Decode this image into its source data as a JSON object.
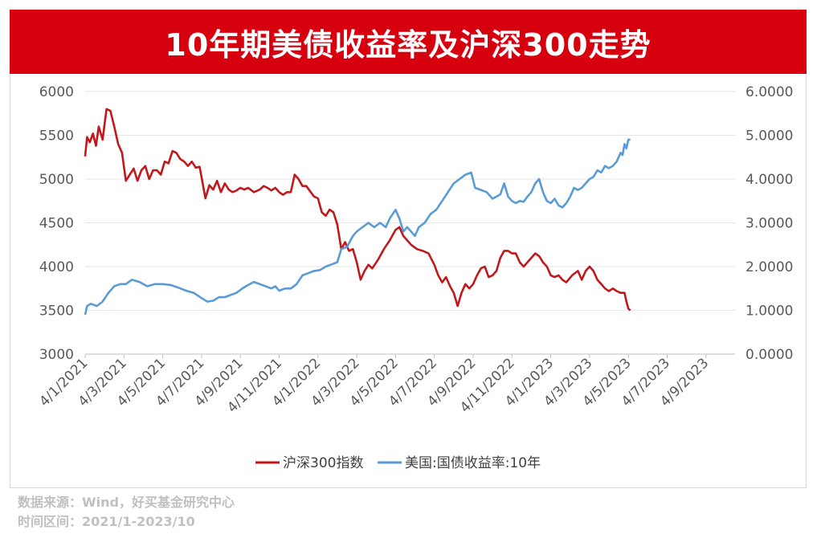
{
  "chart_data": {
    "type": "line",
    "title": "10年期美债收益率及沪深300走势",
    "x_labels": [
      "4/1/2021",
      "4/3/2021",
      "4/5/2021",
      "4/7/2021",
      "4/9/2021",
      "4/11/2021",
      "4/1/2022",
      "4/3/2022",
      "4/5/2022",
      "4/7/2022",
      "4/9/2022",
      "4/11/2022",
      "4/1/2023",
      "4/3/2023",
      "4/5/2023",
      "4/7/2023",
      "4/9/2023"
    ],
    "y_left": {
      "min": 3000,
      "max": 6000,
      "ticks": [
        "3000",
        "3500",
        "4000",
        "4500",
        "5000",
        "5500",
        "6000"
      ]
    },
    "y_right": {
      "min": 0,
      "max": 6,
      "ticks": [
        "0.0000",
        "1.0000",
        "2.0000",
        "3.0000",
        "4.0000",
        "5.0000",
        "6.0000"
      ]
    },
    "grid": true,
    "legend_position": "bottom",
    "series": [
      {
        "name": "沪深300指数",
        "color": "#c0191c",
        "axis": "left",
        "points": [
          [
            0.0,
            5260
          ],
          [
            0.05,
            5480
          ],
          [
            0.12,
            5420
          ],
          [
            0.2,
            5520
          ],
          [
            0.28,
            5380
          ],
          [
            0.35,
            5600
          ],
          [
            0.45,
            5450
          ],
          [
            0.55,
            5800
          ],
          [
            0.65,
            5780
          ],
          [
            0.75,
            5600
          ],
          [
            0.85,
            5400
          ],
          [
            0.95,
            5300
          ],
          [
            1.05,
            4980
          ],
          [
            1.15,
            5050
          ],
          [
            1.25,
            5120
          ],
          [
            1.35,
            4980
          ],
          [
            1.45,
            5100
          ],
          [
            1.55,
            5150
          ],
          [
            1.65,
            5000
          ],
          [
            1.75,
            5100
          ],
          [
            1.85,
            5100
          ],
          [
            1.95,
            5050
          ],
          [
            2.05,
            5200
          ],
          [
            2.15,
            5180
          ],
          [
            2.25,
            5320
          ],
          [
            2.35,
            5300
          ],
          [
            2.45,
            5230
          ],
          [
            2.55,
            5200
          ],
          [
            2.65,
            5150
          ],
          [
            2.75,
            5200
          ],
          [
            2.85,
            5130
          ],
          [
            2.95,
            5140
          ],
          [
            3.05,
            4900
          ],
          [
            3.1,
            4780
          ],
          [
            3.2,
            4930
          ],
          [
            3.3,
            4880
          ],
          [
            3.4,
            4980
          ],
          [
            3.5,
            4850
          ],
          [
            3.6,
            4950
          ],
          [
            3.7,
            4880
          ],
          [
            3.8,
            4850
          ],
          [
            3.9,
            4870
          ],
          [
            4.0,
            4900
          ],
          [
            4.1,
            4880
          ],
          [
            4.2,
            4900
          ],
          [
            4.35,
            4850
          ],
          [
            4.5,
            4880
          ],
          [
            4.6,
            4920
          ],
          [
            4.7,
            4900
          ],
          [
            4.8,
            4870
          ],
          [
            4.9,
            4900
          ],
          [
            5.0,
            4850
          ],
          [
            5.1,
            4820
          ],
          [
            5.2,
            4850
          ],
          [
            5.3,
            4850
          ],
          [
            5.4,
            5050
          ],
          [
            5.5,
            5000
          ],
          [
            5.6,
            4920
          ],
          [
            5.7,
            4920
          ],
          [
            5.8,
            4860
          ],
          [
            5.9,
            4800
          ],
          [
            6.0,
            4780
          ],
          [
            6.1,
            4620
          ],
          [
            6.2,
            4580
          ],
          [
            6.3,
            4650
          ],
          [
            6.4,
            4620
          ],
          [
            6.5,
            4480
          ],
          [
            6.6,
            4200
          ],
          [
            6.7,
            4280
          ],
          [
            6.8,
            4180
          ],
          [
            6.9,
            4200
          ],
          [
            7.0,
            4050
          ],
          [
            7.1,
            3850
          ],
          [
            7.2,
            3950
          ],
          [
            7.3,
            4020
          ],
          [
            7.4,
            3980
          ],
          [
            7.55,
            4080
          ],
          [
            7.7,
            4200
          ],
          [
            7.85,
            4300
          ],
          [
            8.0,
            4420
          ],
          [
            8.1,
            4450
          ],
          [
            8.2,
            4350
          ],
          [
            8.3,
            4300
          ],
          [
            8.4,
            4250
          ],
          [
            8.55,
            4200
          ],
          [
            8.7,
            4180
          ],
          [
            8.85,
            4150
          ],
          [
            9.0,
            4020
          ],
          [
            9.1,
            3900
          ],
          [
            9.2,
            3820
          ],
          [
            9.3,
            3880
          ],
          [
            9.4,
            3780
          ],
          [
            9.5,
            3700
          ],
          [
            9.6,
            3550
          ],
          [
            9.7,
            3700
          ],
          [
            9.8,
            3800
          ],
          [
            9.9,
            3750
          ],
          [
            10.0,
            3800
          ],
          [
            10.1,
            3900
          ],
          [
            10.2,
            3980
          ],
          [
            10.3,
            4000
          ],
          [
            10.4,
            3880
          ],
          [
            10.5,
            3900
          ],
          [
            10.6,
            3950
          ],
          [
            10.7,
            4100
          ],
          [
            10.8,
            4180
          ],
          [
            10.9,
            4180
          ],
          [
            11.0,
            4150
          ],
          [
            11.1,
            4150
          ],
          [
            11.2,
            4050
          ],
          [
            11.3,
            4000
          ],
          [
            11.4,
            4050
          ],
          [
            11.5,
            4100
          ],
          [
            11.6,
            4150
          ],
          [
            11.7,
            4120
          ],
          [
            11.8,
            4050
          ],
          [
            11.9,
            4000
          ],
          [
            12.0,
            3900
          ],
          [
            12.1,
            3880
          ],
          [
            12.2,
            3900
          ],
          [
            12.3,
            3850
          ],
          [
            12.4,
            3820
          ],
          [
            12.55,
            3900
          ],
          [
            12.7,
            3950
          ],
          [
            12.8,
            3850
          ],
          [
            12.9,
            3950
          ],
          [
            13.0,
            4000
          ],
          [
            13.1,
            3950
          ],
          [
            13.2,
            3850
          ],
          [
            13.3,
            3800
          ],
          [
            13.4,
            3750
          ],
          [
            13.5,
            3720
          ],
          [
            13.6,
            3750
          ],
          [
            13.7,
            3720
          ],
          [
            13.8,
            3700
          ],
          [
            13.9,
            3700
          ],
          [
            13.95,
            3600
          ],
          [
            14.0,
            3520
          ],
          [
            14.05,
            3500
          ]
        ]
      },
      {
        "name": "美国:国债收益率:10年",
        "color": "#5b9bd5",
        "axis": "right",
        "points": [
          [
            0.0,
            0.9
          ],
          [
            0.05,
            1.1
          ],
          [
            0.15,
            1.15
          ],
          [
            0.3,
            1.1
          ],
          [
            0.45,
            1.2
          ],
          [
            0.6,
            1.4
          ],
          [
            0.75,
            1.55
          ],
          [
            0.9,
            1.6
          ],
          [
            1.05,
            1.6
          ],
          [
            1.2,
            1.7
          ],
          [
            1.4,
            1.65
          ],
          [
            1.6,
            1.55
          ],
          [
            1.8,
            1.6
          ],
          [
            2.0,
            1.6
          ],
          [
            2.2,
            1.58
          ],
          [
            2.4,
            1.52
          ],
          [
            2.6,
            1.45
          ],
          [
            2.8,
            1.4
          ],
          [
            3.0,
            1.28
          ],
          [
            3.15,
            1.2
          ],
          [
            3.3,
            1.22
          ],
          [
            3.45,
            1.3
          ],
          [
            3.6,
            1.3
          ],
          [
            3.75,
            1.35
          ],
          [
            3.9,
            1.4
          ],
          [
            4.05,
            1.5
          ],
          [
            4.2,
            1.58
          ],
          [
            4.35,
            1.65
          ],
          [
            4.5,
            1.6
          ],
          [
            4.65,
            1.55
          ],
          [
            4.8,
            1.5
          ],
          [
            4.9,
            1.55
          ],
          [
            5.0,
            1.45
          ],
          [
            5.15,
            1.5
          ],
          [
            5.3,
            1.5
          ],
          [
            5.45,
            1.6
          ],
          [
            5.6,
            1.8
          ],
          [
            5.75,
            1.85
          ],
          [
            5.9,
            1.9
          ],
          [
            6.05,
            1.92
          ],
          [
            6.2,
            2.0
          ],
          [
            6.35,
            2.05
          ],
          [
            6.5,
            2.1
          ],
          [
            6.6,
            2.4
          ],
          [
            6.75,
            2.45
          ],
          [
            6.9,
            2.7
          ],
          [
            7.0,
            2.8
          ],
          [
            7.15,
            2.9
          ],
          [
            7.3,
            3.0
          ],
          [
            7.45,
            2.9
          ],
          [
            7.6,
            3.0
          ],
          [
            7.75,
            2.9
          ],
          [
            7.85,
            3.1
          ],
          [
            8.0,
            3.3
          ],
          [
            8.1,
            3.1
          ],
          [
            8.2,
            2.8
          ],
          [
            8.3,
            2.9
          ],
          [
            8.4,
            2.8
          ],
          [
            8.5,
            2.7
          ],
          [
            8.6,
            2.9
          ],
          [
            8.75,
            3.0
          ],
          [
            8.9,
            3.2
          ],
          [
            9.05,
            3.3
          ],
          [
            9.2,
            3.5
          ],
          [
            9.35,
            3.7
          ],
          [
            9.5,
            3.9
          ],
          [
            9.65,
            4.0
          ],
          [
            9.8,
            4.1
          ],
          [
            9.95,
            4.15
          ],
          [
            10.05,
            3.8
          ],
          [
            10.2,
            3.75
          ],
          [
            10.35,
            3.7
          ],
          [
            10.5,
            3.55
          ],
          [
            10.6,
            3.6
          ],
          [
            10.7,
            3.65
          ],
          [
            10.8,
            3.9
          ],
          [
            10.9,
            3.6
          ],
          [
            11.0,
            3.5
          ],
          [
            11.1,
            3.45
          ],
          [
            11.2,
            3.5
          ],
          [
            11.3,
            3.48
          ],
          [
            11.4,
            3.6
          ],
          [
            11.5,
            3.7
          ],
          [
            11.6,
            3.9
          ],
          [
            11.7,
            4.0
          ],
          [
            11.8,
            3.7
          ],
          [
            11.9,
            3.5
          ],
          [
            12.0,
            3.45
          ],
          [
            12.1,
            3.55
          ],
          [
            12.2,
            3.4
          ],
          [
            12.3,
            3.35
          ],
          [
            12.4,
            3.45
          ],
          [
            12.5,
            3.6
          ],
          [
            12.6,
            3.8
          ],
          [
            12.7,
            3.75
          ],
          [
            12.8,
            3.8
          ],
          [
            12.9,
            3.9
          ],
          [
            13.0,
            4.0
          ],
          [
            13.1,
            4.05
          ],
          [
            13.2,
            4.2
          ],
          [
            13.3,
            4.15
          ],
          [
            13.4,
            4.3
          ],
          [
            13.5,
            4.25
          ],
          [
            13.6,
            4.3
          ],
          [
            13.7,
            4.4
          ],
          [
            13.8,
            4.6
          ],
          [
            13.85,
            4.55
          ],
          [
            13.9,
            4.8
          ],
          [
            13.95,
            4.7
          ],
          [
            14.0,
            4.9
          ],
          [
            14.05,
            4.9
          ]
        ]
      }
    ]
  },
  "footer": {
    "line1": "数据来源：Wind，好买基金研究中心",
    "line2": "时间区间：2021/1-2023/10"
  }
}
